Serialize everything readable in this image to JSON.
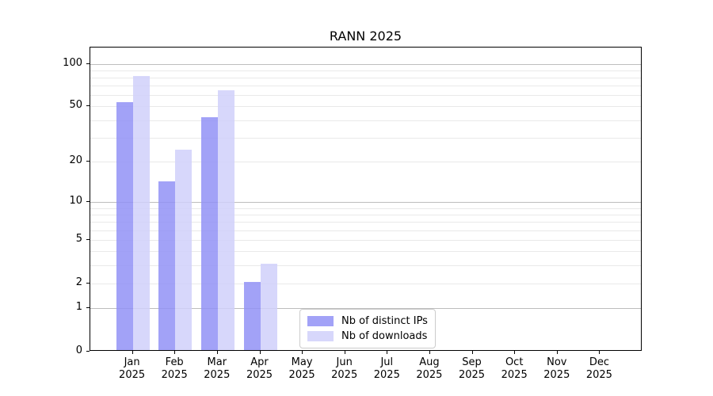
{
  "chart_data": {
    "type": "bar",
    "title": "RANN 2025",
    "categories": [
      "Jan",
      "Feb",
      "Mar",
      "Apr",
      "May",
      "Jun",
      "Jul",
      "Aug",
      "Sep",
      "Oct",
      "Nov",
      "Dec"
    ],
    "x_year_label": "2025",
    "series": [
      {
        "name": "Nb of distinct IPs",
        "color": "#a4a4f7",
        "fill": "rgba(146,146,246,0.85)",
        "values": [
          52,
          14,
          41,
          2,
          0,
          0,
          0,
          0,
          0,
          0,
          0,
          0
        ]
      },
      {
        "name": "Nb of downloads",
        "color": "#d8d8fa",
        "fill": "rgba(208,208,250,0.85)",
        "values": [
          80,
          24,
          63,
          3,
          0,
          0,
          0,
          0,
          0,
          0,
          0,
          0
        ]
      }
    ],
    "yscale": "log10(1+v)",
    "ylim": [
      0,
      130
    ],
    "yticks": [
      0,
      1,
      2,
      5,
      10,
      20,
      50,
      100
    ],
    "major_gridlines": [
      1,
      10,
      100
    ],
    "minor_gridlines": [
      2,
      3,
      4,
      5,
      6,
      7,
      8,
      9,
      20,
      30,
      40,
      50,
      60,
      70,
      80,
      90
    ],
    "grid": true,
    "legend_position": "lower center inside plot"
  },
  "colors": {
    "background": "#ffffff",
    "spine": "#000000",
    "major_grid": "#bdbdbd",
    "minor_grid": "#e9e9e9",
    "legend_border": "#cccccc"
  }
}
